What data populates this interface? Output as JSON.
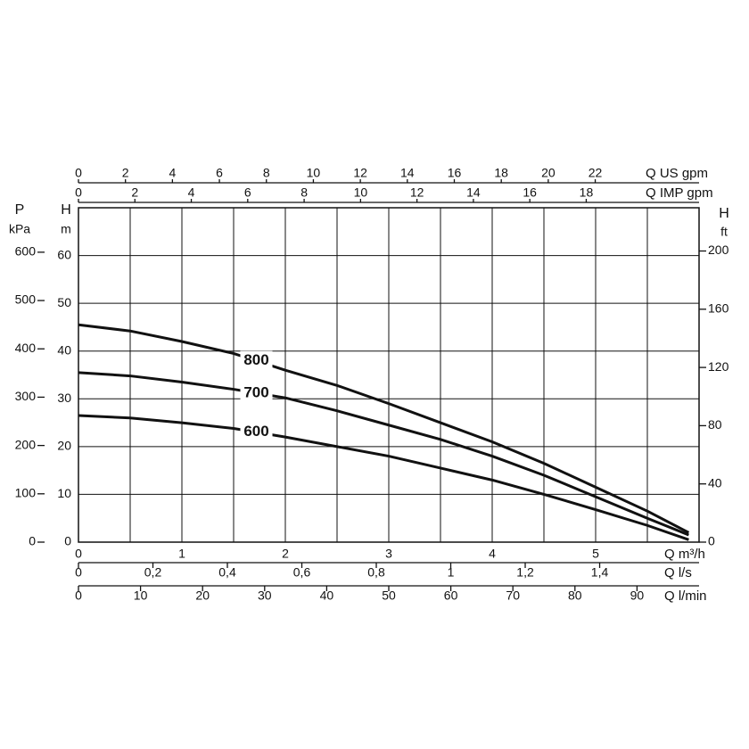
{
  "chart_data": {
    "type": "line",
    "x_label": "Q m³/h",
    "y_label": "H",
    "y_unit": "m",
    "x": [
      0,
      0.5,
      1,
      1.5,
      2,
      2.5,
      3,
      3.5,
      4,
      4.5,
      5,
      5.5,
      5.9
    ],
    "series": [
      {
        "name": "800",
        "color": "#111111",
        "values": [
          45.5,
          44.2,
          42,
          39.5,
          36,
          32.8,
          29,
          25,
          21,
          16.5,
          11.5,
          6.5,
          2
        ]
      },
      {
        "name": "700",
        "color": "#111111",
        "values": [
          35.5,
          34.8,
          33.5,
          32,
          30.2,
          27.5,
          24.5,
          21.5,
          18,
          14,
          9.5,
          5,
          1.5
        ]
      },
      {
        "name": "600",
        "color": "#111111",
        "values": [
          26.5,
          26,
          25,
          23.8,
          22,
          20,
          18,
          15.5,
          13,
          10,
          6.8,
          3.5,
          0.5
        ]
      }
    ],
    "xlim": [
      0,
      6
    ],
    "xticks": [
      0,
      1,
      2,
      3,
      4,
      5
    ],
    "xgrid": [
      0.5,
      1,
      1.5,
      2,
      2.5,
      3,
      3.5,
      4,
      4.5,
      5,
      5.5
    ],
    "ylim": [
      0,
      70
    ],
    "yticks": [
      0,
      10,
      20,
      30,
      40,
      50,
      60
    ],
    "grid": true,
    "p_axis": {
      "label": "P",
      "unit": "kPa",
      "lim": [
        0,
        692
      ],
      "ticks": [
        0,
        100,
        200,
        300,
        400,
        500,
        600
      ]
    },
    "ft_axis": {
      "label": "H",
      "unit": "ft",
      "lim": [
        0,
        229.7
      ],
      "ticks": [
        0,
        40,
        80,
        120,
        160,
        200
      ]
    },
    "top_axes": [
      {
        "label": "Q US gpm",
        "lim": [
          0,
          26.42
        ],
        "ticks": [
          0,
          2,
          4,
          6,
          8,
          10,
          12,
          14,
          16,
          18,
          20,
          22
        ]
      },
      {
        "label": "Q IMP gpm",
        "lim": [
          0,
          22
        ],
        "ticks": [
          0,
          2,
          4,
          6,
          8,
          10,
          12,
          14,
          16,
          18
        ]
      }
    ],
    "bottom_axes": [
      {
        "label": "Q l/s",
        "lim": [
          0,
          1.667
        ],
        "ticks": [
          0,
          {
            "value": 0.2,
            "label": "0,2"
          },
          {
            "value": 0.4,
            "label": "0,4"
          },
          {
            "value": 0.6,
            "label": "0,6"
          },
          {
            "value": 0.8,
            "label": "0,8"
          },
          1,
          {
            "value": 1.2,
            "label": "1,2"
          },
          {
            "value": 1.4,
            "label": "1,4"
          }
        ]
      },
      {
        "label": "Q l/min",
        "lim": [
          0,
          100
        ],
        "ticks": [
          0,
          10,
          20,
          30,
          40,
          50,
          60,
          70,
          80,
          90
        ]
      }
    ]
  }
}
